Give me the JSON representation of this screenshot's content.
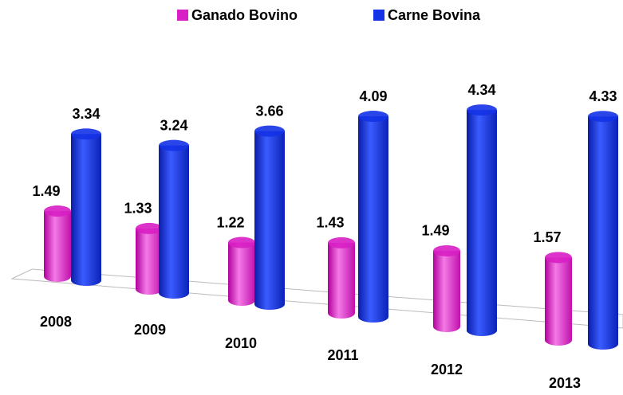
{
  "chart_data": {
    "type": "bar",
    "categories": [
      "2008",
      "2009",
      "2010",
      "2011",
      "2012",
      "2013"
    ],
    "series": [
      {
        "name": "Ganado Bovino",
        "color": "#d81ec4",
        "values": [
          1.49,
          1.33,
          1.22,
          1.43,
          1.49,
          1.57
        ]
      },
      {
        "name": "Carne Bovina",
        "color": "#1432e6",
        "values": [
          3.34,
          3.24,
          3.66,
          4.09,
          4.34,
          4.33
        ]
      }
    ],
    "legend": "top"
  }
}
